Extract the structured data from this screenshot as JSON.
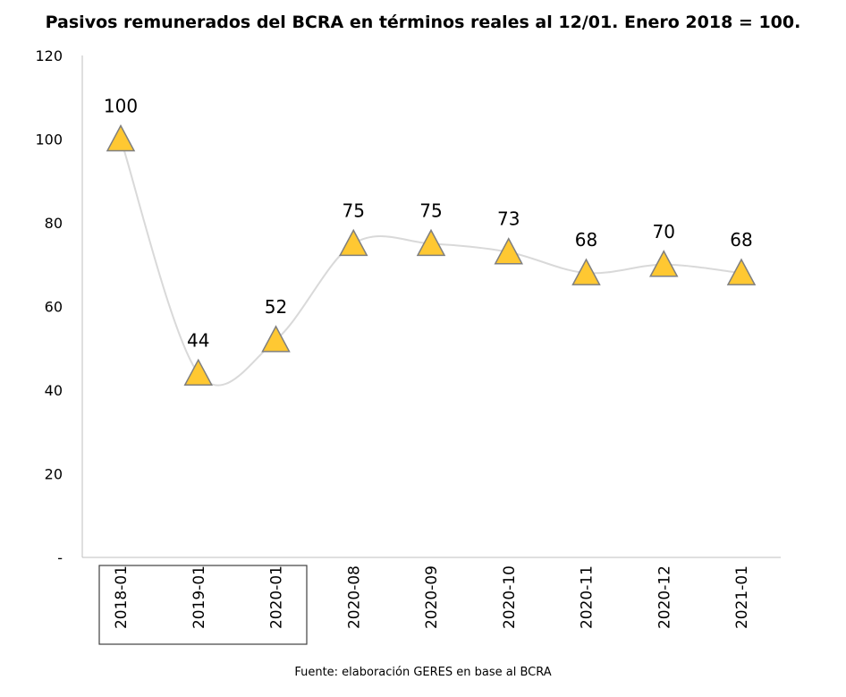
{
  "title": "Pasivos remunerados del BCRA en términos reales al 12/01. Enero 2018 = 100.",
  "source": "Fuente: elaboración GERES en base al BCRA",
  "chart_data": {
    "type": "line",
    "title": "Pasivos remunerados del BCRA en términos reales al 12/01. Enero 2018 = 100.",
    "xlabel": "",
    "ylabel": "",
    "categories": [
      "2018-01",
      "2019-01",
      "2020-01",
      "2020-08",
      "2020-09",
      "2020-10",
      "2020-11",
      "2020-12",
      "2021-01"
    ],
    "series": [
      {
        "values": [
          100,
          44,
          52,
          75,
          75,
          73,
          68,
          70,
          68
        ],
        "data_labels": [
          "100",
          "44",
          "52",
          "75",
          "75",
          "73",
          "68",
          "70",
          "68"
        ]
      }
    ],
    "ylim": [
      0,
      120
    ],
    "yticks": [
      0,
      20,
      40,
      60,
      80,
      100,
      120
    ],
    "ytick_labels": [
      "-",
      "20",
      "40",
      "60",
      "80",
      "100",
      "120"
    ],
    "grid": false,
    "smooth": true,
    "highlighted_categories": [
      "2018-01",
      "2019-01",
      "2020-01"
    ],
    "colors": {
      "line": "#d9d9d9",
      "marker_fill": "#ffc832",
      "marker_stroke": "#7f7f7f",
      "axis": "#bfbfbf",
      "box": "#404040"
    }
  }
}
